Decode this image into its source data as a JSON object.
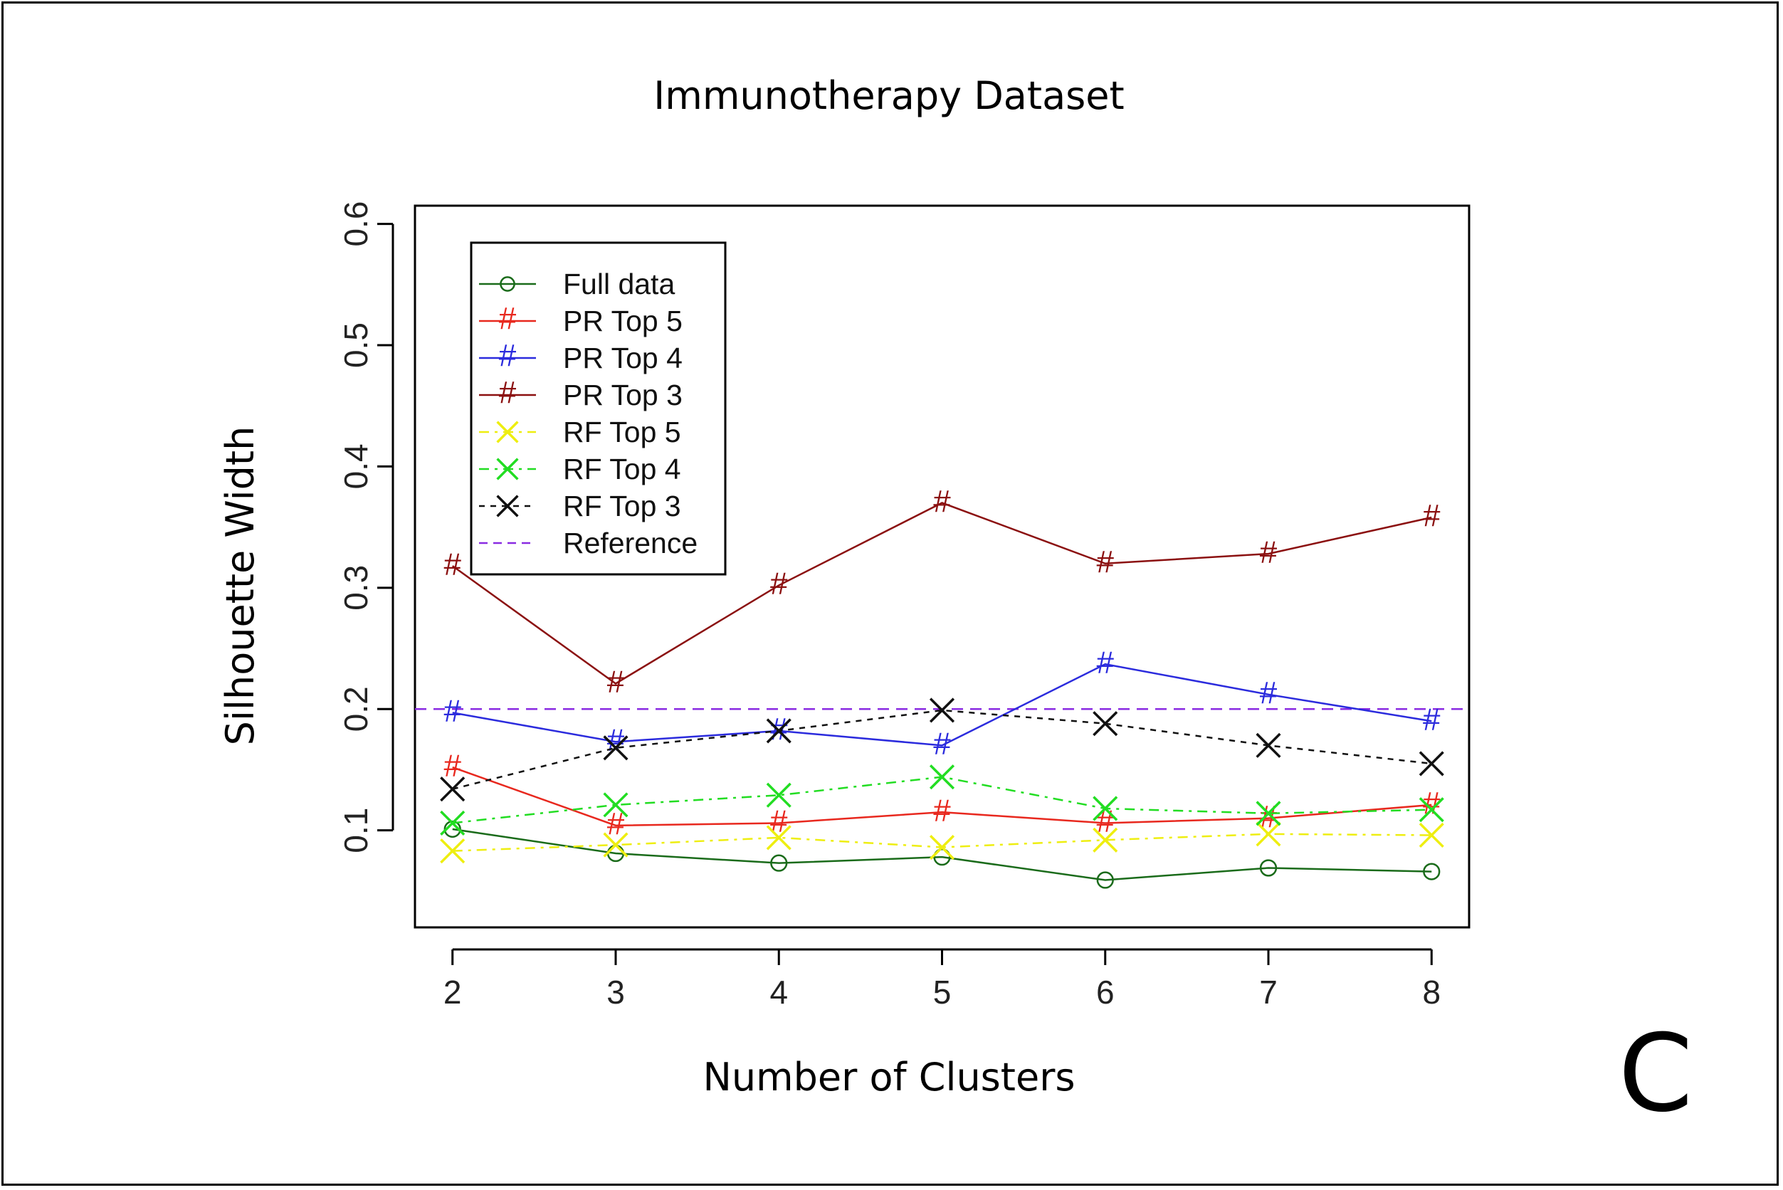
{
  "chart_data": {
    "type": "line",
    "title": "Immunotherapy Dataset",
    "xlabel": "Number of Clusters",
    "ylabel": "Silhouette Width",
    "panel_label": "C",
    "x": [
      2,
      3,
      4,
      5,
      6,
      7,
      8
    ],
    "x_ticks": [
      "2",
      "3",
      "4",
      "5",
      "6",
      "7",
      "8"
    ],
    "y_ticks": [
      "0.1",
      "0.2",
      "0.3",
      "0.4",
      "0.5",
      "0.6"
    ],
    "xlim": [
      1.77,
      8.23
    ],
    "ylim": [
      0.02,
      0.615
    ],
    "grid": false,
    "legend_position": "top-left",
    "series": [
      {
        "name": "Full data",
        "color": "#1a6b1a",
        "dash": "",
        "marker": "circle",
        "values": [
          0.101,
          0.081,
          0.073,
          0.078,
          0.059,
          0.069,
          0.066
        ]
      },
      {
        "name": "PR Top 5",
        "color": "#e8281e",
        "dash": "",
        "marker": "#",
        "values": [
          0.152,
          0.104,
          0.106,
          0.115,
          0.106,
          0.11,
          0.121
        ]
      },
      {
        "name": "PR Top 4",
        "color": "#2b2bdd",
        "dash": "",
        "marker": "#",
        "values": [
          0.197,
          0.173,
          0.182,
          0.17,
          0.237,
          0.212,
          0.19
        ]
      },
      {
        "name": "PR Top 3",
        "color": "#8b1010",
        "dash": "",
        "marker": "#",
        "values": [
          0.318,
          0.221,
          0.302,
          0.37,
          0.32,
          0.328,
          0.358
        ]
      },
      {
        "name": "RF Top 5",
        "color": "#eeee10",
        "dash": "14,8,4,8",
        "marker": "x",
        "values": [
          0.083,
          0.088,
          0.094,
          0.086,
          0.092,
          0.097,
          0.096
        ]
      },
      {
        "name": "RF Top 4",
        "color": "#22dd22",
        "dash": "14,8,4,8",
        "marker": "x",
        "values": [
          0.106,
          0.121,
          0.129,
          0.144,
          0.118,
          0.114,
          0.117
        ]
      },
      {
        "name": "RF Top 3",
        "color": "#111111",
        "dash": "8,8",
        "marker": "x",
        "values": [
          0.134,
          0.168,
          0.182,
          0.199,
          0.188,
          0.17,
          0.155
        ]
      }
    ],
    "reference": {
      "name": "Reference",
      "color": "#8a2be2",
      "dash": "16,10",
      "value": 0.2
    }
  }
}
